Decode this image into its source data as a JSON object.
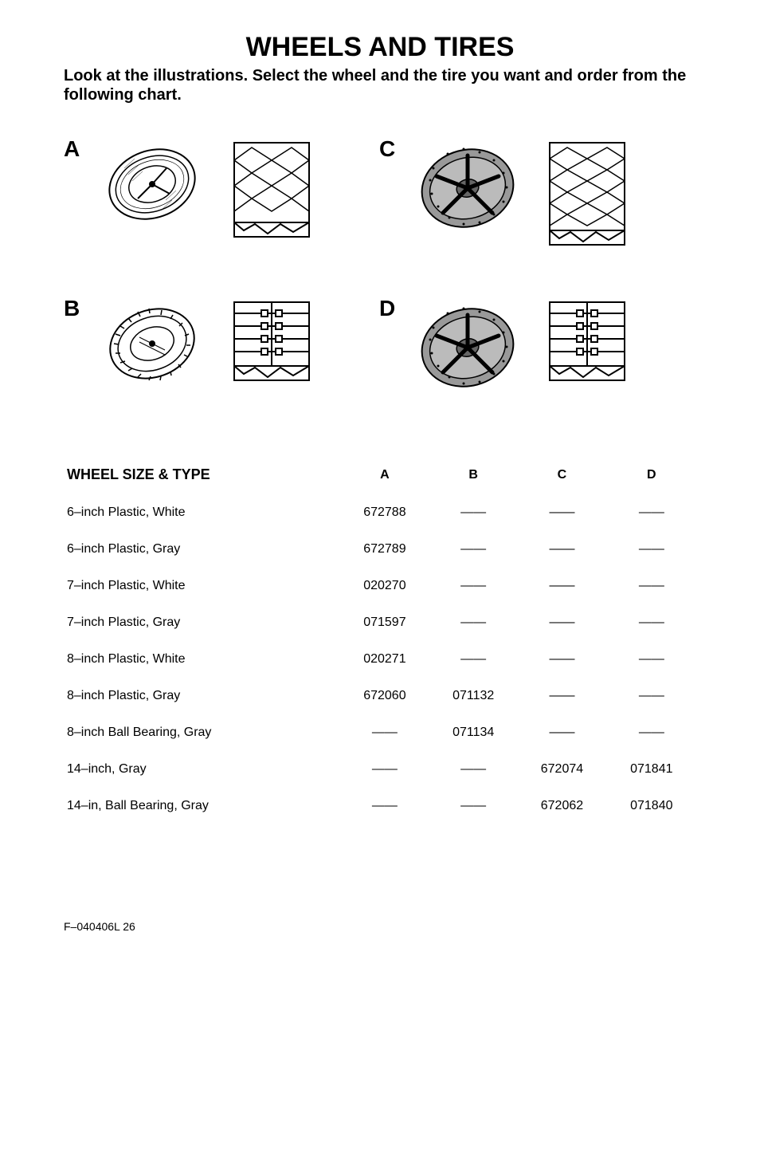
{
  "title": "WHEELS AND TIRES",
  "subtitle": "Look at the illustrations. Select the wheel and the tire you want and order from the following chart.",
  "illus": {
    "A": "A",
    "B": "B",
    "C": "C",
    "D": "D"
  },
  "table": {
    "headers": [
      "WHEEL SIZE & TYPE",
      "A",
      "B",
      "C",
      "D"
    ],
    "rows": [
      [
        "6–inch Plastic, White",
        "672788",
        "——",
        "——",
        "——"
      ],
      [
        "6–inch Plastic, Gray",
        "672789",
        "——",
        "——",
        "——"
      ],
      [
        "7–inch Plastic, White",
        "020270",
        "——",
        "——",
        "——"
      ],
      [
        "7–inch Plastic, Gray",
        "071597",
        "——",
        "——",
        "——"
      ],
      [
        "8–inch Plastic, White",
        "020271",
        "——",
        "——",
        "——"
      ],
      [
        "8–inch Plastic, Gray",
        "672060",
        "071132",
        "——",
        "——"
      ],
      [
        "8–inch Ball Bearing, Gray",
        "——",
        "071134",
        "——",
        "——"
      ],
      [
        "14–inch, Gray",
        "——",
        "——",
        "672074",
        "071841"
      ],
      [
        "14–in, Ball Bearing, Gray",
        "——",
        "——",
        "672062",
        "071840"
      ]
    ]
  },
  "footer": {
    "left": "F–040406L",
    "page": "26"
  },
  "colors": {
    "stroke": "#000000",
    "fill_gray": "#888888",
    "fill_light": "#cccccc",
    "bg": "#ffffff"
  }
}
